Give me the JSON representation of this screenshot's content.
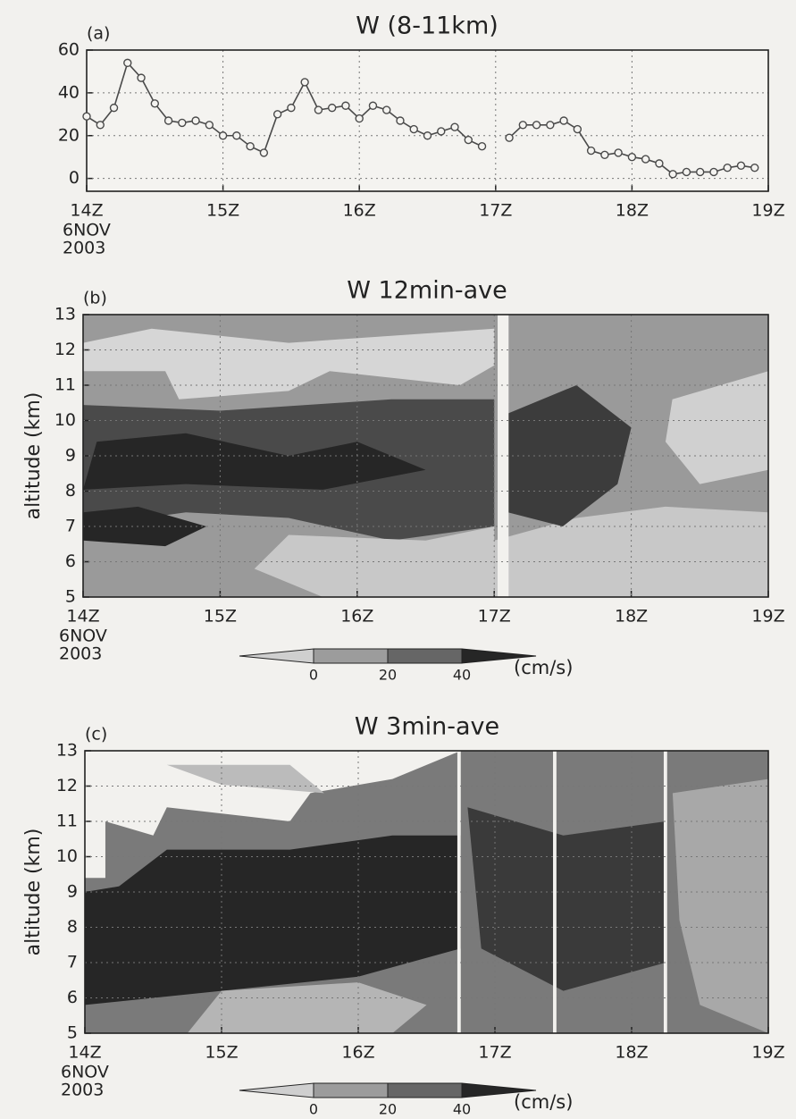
{
  "chart_data": [
    {
      "type": "line",
      "panel_label": "(a)",
      "title": "W (8-11km)",
      "x": [
        14.0,
        14.1,
        14.2,
        14.3,
        14.4,
        14.5,
        14.6,
        14.7,
        14.8,
        14.9,
        15.0,
        15.1,
        15.2,
        15.3,
        15.4,
        15.5,
        15.6,
        15.7,
        15.8,
        15.9,
        16.0,
        16.1,
        16.2,
        16.3,
        16.4,
        16.5,
        16.6,
        16.7,
        16.8,
        16.9,
        17.0,
        17.1,
        17.2,
        17.3,
        17.4,
        17.5,
        17.6,
        17.7,
        17.8,
        17.9,
        18.0,
        18.1,
        18.2,
        18.3,
        18.4,
        18.5,
        18.6,
        18.7,
        18.8,
        18.9
      ],
      "series": [
        {
          "color": "#4a4a4a",
          "values": [
            29,
            25,
            33,
            54,
            47,
            35,
            27,
            26,
            27,
            25,
            20,
            20,
            15,
            12,
            30,
            33,
            45,
            32,
            33,
            34,
            28,
            34,
            32,
            27,
            23,
            20,
            22,
            24,
            18,
            15,
            null,
            19,
            25,
            25,
            25,
            27,
            23,
            13,
            11,
            12,
            10,
            9,
            7,
            2,
            3,
            3,
            3,
            5,
            6,
            5
          ]
        }
      ],
      "xlim": [
        14,
        19
      ],
      "xticks": [
        {
          "value": 14,
          "label": "14Z"
        },
        {
          "value": 15,
          "label": "15Z"
        },
        {
          "value": 16,
          "label": "16Z"
        },
        {
          "value": 17,
          "label": "17Z"
        },
        {
          "value": 18,
          "label": "18Z"
        },
        {
          "value": 19,
          "label": "19Z"
        }
      ],
      "date_label": [
        "6NOV",
        "2003"
      ],
      "ylim": [
        -6,
        60
      ],
      "yticks": [
        0,
        20,
        40,
        60
      ],
      "grid": true
    },
    {
      "type": "contour",
      "panel_label": "(b)",
      "title": "W 12min-ave",
      "ylabel": "altitude (km)",
      "xlim": [
        14,
        19
      ],
      "xticks": [
        {
          "value": 14,
          "label": "14Z"
        },
        {
          "value": 15,
          "label": "15Z"
        },
        {
          "value": 16,
          "label": "16Z"
        },
        {
          "value": 17,
          "label": "17Z"
        },
        {
          "value": 18,
          "label": "18Z"
        },
        {
          "value": 19,
          "label": "19Z"
        }
      ],
      "date_label": [
        "6NOV",
        "2003"
      ],
      "ylim": [
        5,
        13
      ],
      "yticks": [
        5,
        6,
        7,
        8,
        9,
        10,
        11,
        12,
        13
      ],
      "grid": true,
      "colorbar": {
        "ticks": [
          0,
          20,
          40
        ],
        "unit": "(cm/s)",
        "colors": [
          "#cfcfcf",
          "#9c9c9c",
          "#666666",
          "#262626"
        ]
      }
    },
    {
      "type": "contour",
      "panel_label": "(c)",
      "title": "W 3min-ave",
      "ylabel": "altitude (km)",
      "xlim": [
        14,
        19
      ],
      "xticks": [
        {
          "value": 14,
          "label": "14Z"
        },
        {
          "value": 15,
          "label": "15Z"
        },
        {
          "value": 16,
          "label": "16Z"
        },
        {
          "value": 17,
          "label": "17Z"
        },
        {
          "value": 18,
          "label": "18Z"
        },
        {
          "value": 19,
          "label": "19Z"
        }
      ],
      "date_label": [
        "6NOV",
        "2003"
      ],
      "ylim": [
        5,
        13
      ],
      "yticks": [
        5,
        6,
        7,
        8,
        9,
        10,
        11,
        12,
        13
      ],
      "grid": true,
      "colorbar": {
        "ticks": [
          0,
          20,
          40
        ],
        "unit": "(cm/s)",
        "colors": [
          "#cfcfcf",
          "#9c9c9c",
          "#666666",
          "#262626"
        ]
      }
    }
  ]
}
